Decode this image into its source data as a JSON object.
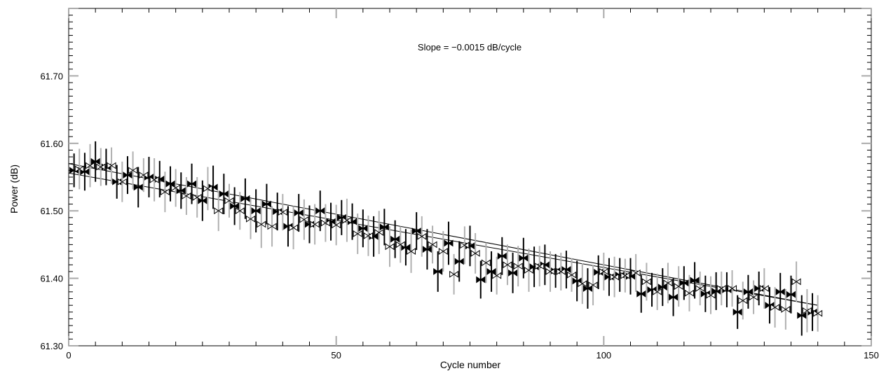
{
  "chart_data": {
    "type": "scatter",
    "title": "",
    "xlabel": "Cycle number",
    "ylabel": "Power   (dB)",
    "xlim": [
      0,
      150
    ],
    "ylim": [
      61.3,
      61.8
    ],
    "x_ticks": [
      {
        "value": 0,
        "label": "0"
      },
      {
        "value": 50,
        "label": "50"
      },
      {
        "value": 100,
        "label": "100"
      },
      {
        "value": 150,
        "label": "150"
      }
    ],
    "y_ticks": [
      {
        "value": 61.3,
        "label": "61.30"
      },
      {
        "value": 61.4,
        "label": "61.40"
      },
      {
        "value": 61.5,
        "label": "61.50"
      },
      {
        "value": 61.6,
        "label": "61.60"
      },
      {
        "value": 61.7,
        "label": "61.70"
      }
    ],
    "annotation": "Slope = −0.0015 dB/cycle",
    "grid": false,
    "series": [
      {
        "marker": "filled-bowtie",
        "error_bar_color": "#000000",
        "x": [
          1,
          3,
          5,
          7,
          9,
          11,
          13,
          15,
          17,
          19,
          21,
          23,
          25,
          27,
          29,
          31,
          33,
          35,
          37,
          39,
          41,
          43,
          45,
          47,
          49,
          51,
          53,
          55,
          57,
          59,
          61,
          63,
          65,
          67,
          69,
          71,
          73,
          75,
          77,
          79,
          81,
          83,
          85,
          87,
          89,
          91,
          93,
          95,
          97,
          99,
          101,
          103,
          105,
          107,
          109,
          111,
          113,
          115,
          117,
          119,
          121,
          123,
          125,
          127,
          129,
          131,
          133,
          135,
          137,
          139
        ],
        "y": [
          61.56,
          61.558,
          61.573,
          61.565,
          61.543,
          61.553,
          61.535,
          61.55,
          61.547,
          61.54,
          61.53,
          61.54,
          61.515,
          61.535,
          61.525,
          61.507,
          61.518,
          61.5,
          61.51,
          61.499,
          61.477,
          61.497,
          61.48,
          61.5,
          61.484,
          61.49,
          61.484,
          61.474,
          61.462,
          61.476,
          61.458,
          61.446,
          61.47,
          61.443,
          61.41,
          61.452,
          61.425,
          61.448,
          61.398,
          61.41,
          61.433,
          61.408,
          61.43,
          61.417,
          61.42,
          61.411,
          61.413,
          61.396,
          61.385,
          61.409,
          61.402,
          61.405,
          61.403,
          61.377,
          61.383,
          61.387,
          61.372,
          61.393,
          61.397,
          61.377,
          61.381,
          61.383,
          61.35,
          61.38,
          61.385,
          61.36,
          61.38,
          61.376,
          61.345,
          61.35
        ],
        "err": [
          0.025,
          0.028,
          0.03,
          0.027,
          0.025,
          0.028,
          0.03,
          0.03,
          0.027,
          0.026,
          0.027,
          0.03,
          0.03,
          0.032,
          0.03,
          0.028,
          0.03,
          0.032,
          0.03,
          0.028,
          0.03,
          0.028,
          0.028,
          0.03,
          0.028,
          0.026,
          0.027,
          0.028,
          0.03,
          0.027,
          0.028,
          0.027,
          0.028,
          0.03,
          0.03,
          0.032,
          0.03,
          0.03,
          0.028,
          0.03,
          0.028,
          0.03,
          0.03,
          0.03,
          0.03,
          0.025,
          0.028,
          0.03,
          0.03,
          0.025,
          0.028,
          0.025,
          0.027,
          0.028,
          0.025,
          0.028,
          0.028,
          0.025,
          0.027,
          0.027,
          0.028,
          0.026,
          0.025,
          0.025,
          0.025,
          0.027,
          0.028,
          0.028,
          0.03,
          0.028
        ]
      },
      {
        "marker": "open-bowtie",
        "error_bar_color": "#b0b0b0",
        "x": [
          2,
          4,
          6,
          8,
          10,
          12,
          14,
          16,
          18,
          20,
          22,
          24,
          26,
          28,
          30,
          32,
          34,
          36,
          38,
          40,
          42,
          44,
          46,
          48,
          50,
          52,
          54,
          56,
          58,
          60,
          62,
          64,
          66,
          68,
          70,
          72,
          74,
          76,
          78,
          80,
          82,
          84,
          86,
          88,
          90,
          92,
          94,
          96,
          98,
          100,
          102,
          104,
          106,
          108,
          110,
          112,
          114,
          116,
          118,
          120,
          122,
          124,
          126,
          128,
          130,
          132,
          134,
          136,
          138,
          140
        ],
        "y": [
          61.562,
          61.567,
          61.565,
          61.567,
          61.543,
          61.56,
          61.553,
          61.546,
          61.528,
          61.534,
          61.522,
          61.52,
          61.533,
          61.5,
          61.515,
          61.5,
          61.488,
          61.48,
          61.477,
          61.498,
          61.475,
          61.487,
          61.48,
          61.482,
          61.479,
          61.486,
          61.466,
          61.463,
          61.468,
          61.447,
          61.45,
          61.44,
          61.462,
          61.45,
          61.44,
          61.406,
          61.449,
          61.437,
          61.423,
          61.404,
          61.42,
          61.418,
          61.412,
          61.418,
          61.41,
          61.41,
          61.405,
          61.392,
          61.39,
          61.41,
          61.402,
          61.404,
          61.408,
          61.395,
          61.38,
          61.393,
          61.388,
          61.378,
          61.385,
          61.375,
          61.385,
          61.385,
          61.367,
          61.372,
          61.385,
          61.357,
          61.354,
          61.395,
          61.352,
          61.348
        ],
        "err": [
          0.03,
          0.032,
          0.028,
          0.027,
          0.03,
          0.028,
          0.025,
          0.032,
          0.03,
          0.028,
          0.028,
          0.03,
          0.032,
          0.03,
          0.025,
          0.028,
          0.03,
          0.035,
          0.03,
          0.027,
          0.032,
          0.03,
          0.03,
          0.028,
          0.03,
          0.032,
          0.03,
          0.03,
          0.032,
          0.03,
          0.027,
          0.032,
          0.03,
          0.028,
          0.03,
          0.03,
          0.028,
          0.03,
          0.03,
          0.028,
          0.03,
          0.03,
          0.032,
          0.03,
          0.03,
          0.028,
          0.025,
          0.03,
          0.03,
          0.028,
          0.03,
          0.025,
          0.028,
          0.028,
          0.027,
          0.03,
          0.03,
          0.027,
          0.025,
          0.028,
          0.025,
          0.027,
          0.028,
          0.025,
          0.03,
          0.03,
          0.03,
          0.03,
          0.032,
          0.027
        ]
      }
    ],
    "fit_lines": [
      {
        "x": [
          0,
          140
        ],
        "y": [
          61.57,
          61.36
        ]
      },
      {
        "x": [
          0,
          140
        ],
        "y": [
          61.556,
          61.36
        ]
      }
    ]
  }
}
